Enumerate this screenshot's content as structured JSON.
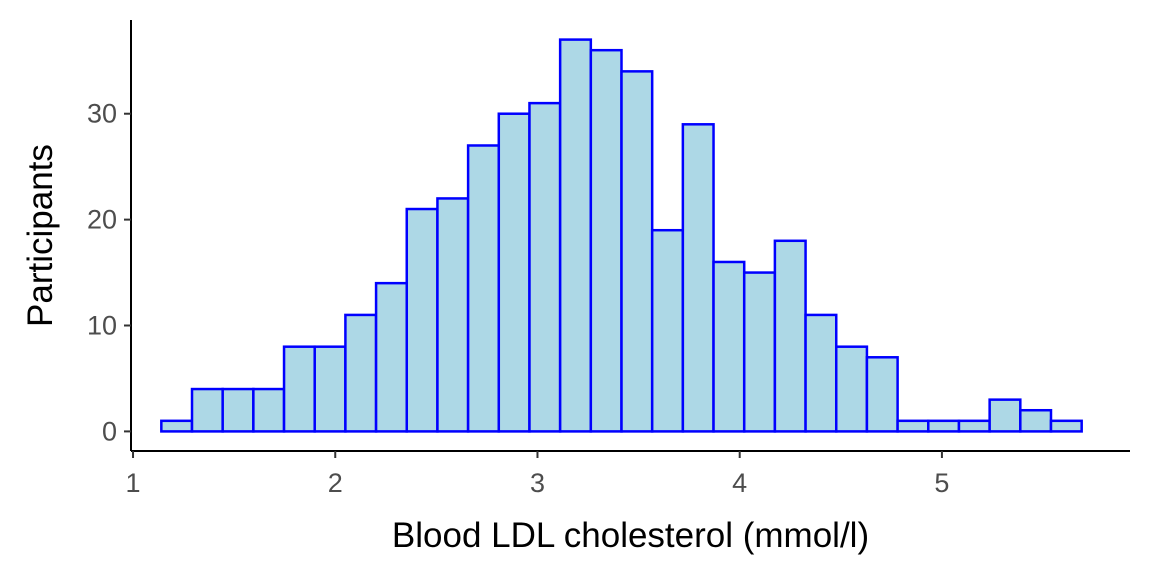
{
  "chart_data": {
    "type": "bar",
    "subtype": "histogram",
    "title": "",
    "xlabel": "Blood LDL cholesterol (mmol/l)",
    "ylabel": "Participants",
    "xlim": [
      0.99,
      5.93
    ],
    "ylim": [
      -1.85,
      38.85
    ],
    "x_ticks": [
      1,
      2,
      3,
      4,
      5
    ],
    "y_ticks": [
      0,
      10,
      20,
      30
    ],
    "bin_start": 1.14,
    "bin_width": 0.1517,
    "bins": [
      {
        "x0": 1.14,
        "x1": 1.29,
        "count": 1
      },
      {
        "x0": 1.29,
        "x1": 1.44,
        "count": 4
      },
      {
        "x0": 1.44,
        "x1": 1.59,
        "count": 4
      },
      {
        "x0": 1.59,
        "x1": 1.75,
        "count": 4
      },
      {
        "x0": 1.75,
        "x1": 1.9,
        "count": 8
      },
      {
        "x0": 1.9,
        "x1": 2.05,
        "count": 8
      },
      {
        "x0": 2.05,
        "x1": 2.2,
        "count": 11
      },
      {
        "x0": 2.2,
        "x1": 2.35,
        "count": 14
      },
      {
        "x0": 2.35,
        "x1": 2.51,
        "count": 21
      },
      {
        "x0": 2.51,
        "x1": 2.66,
        "count": 22
      },
      {
        "x0": 2.66,
        "x1": 2.81,
        "count": 27
      },
      {
        "x0": 2.81,
        "x1": 2.96,
        "count": 30
      },
      {
        "x0": 2.96,
        "x1": 3.11,
        "count": 31
      },
      {
        "x0": 3.11,
        "x1": 3.27,
        "count": 37
      },
      {
        "x0": 3.27,
        "x1": 3.42,
        "count": 36
      },
      {
        "x0": 3.42,
        "x1": 3.57,
        "count": 34
      },
      {
        "x0": 3.57,
        "x1": 3.72,
        "count": 19
      },
      {
        "x0": 3.72,
        "x1": 3.87,
        "count": 29
      },
      {
        "x0": 3.87,
        "x1": 4.03,
        "count": 16
      },
      {
        "x0": 4.03,
        "x1": 4.18,
        "count": 15
      },
      {
        "x0": 4.18,
        "x1": 4.33,
        "count": 18
      },
      {
        "x0": 4.33,
        "x1": 4.48,
        "count": 11
      },
      {
        "x0": 4.48,
        "x1": 4.63,
        "count": 8
      },
      {
        "x0": 4.63,
        "x1": 4.79,
        "count": 7
      },
      {
        "x0": 4.79,
        "x1": 4.94,
        "count": 1
      },
      {
        "x0": 4.94,
        "x1": 5.09,
        "count": 1
      },
      {
        "x0": 5.09,
        "x1": 5.24,
        "count": 1
      },
      {
        "x0": 5.24,
        "x1": 5.39,
        "count": 3
      },
      {
        "x0": 5.39,
        "x1": 5.55,
        "count": 2
      },
      {
        "x0": 5.55,
        "x1": 5.7,
        "count": 1
      }
    ],
    "bar_fill": "#ADD8E6",
    "bar_outline": "#0000FF",
    "grid": false,
    "legend": "none"
  }
}
